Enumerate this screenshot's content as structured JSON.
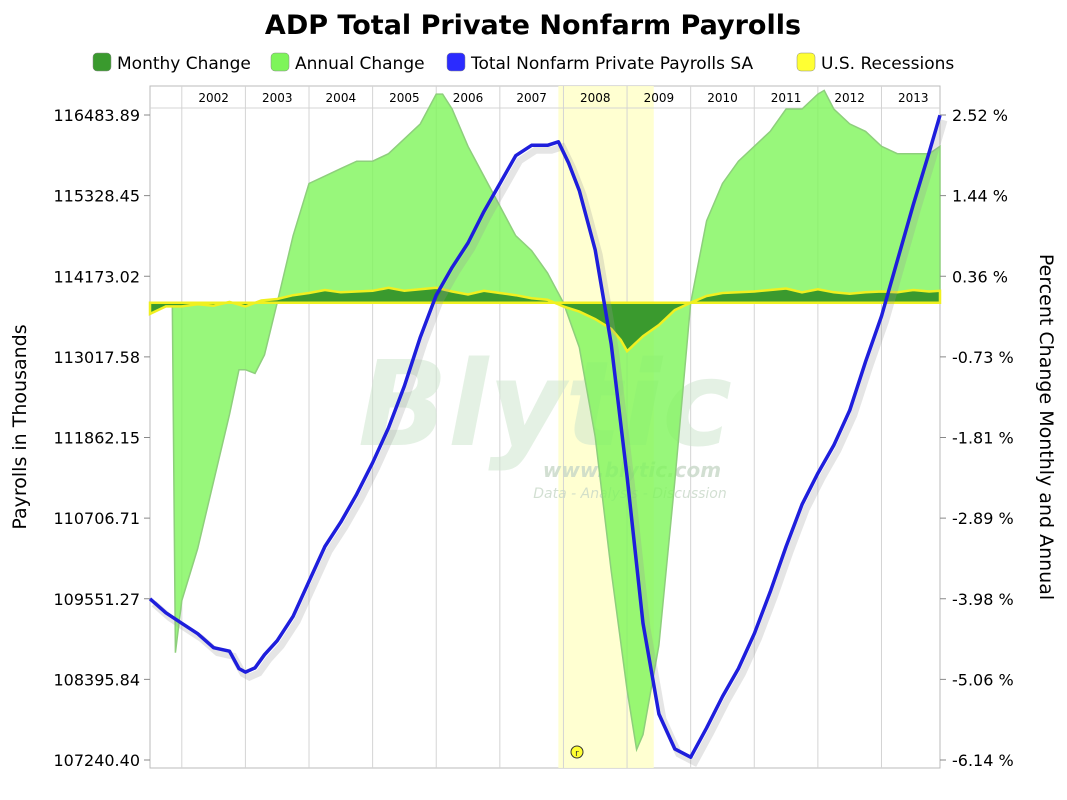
{
  "chart_data": {
    "type": "line",
    "title": "ADP Total Private Nonfarm Payrolls",
    "ylabel_left": "Payrolls in Thousands",
    "ylabel_right": "Percent Change Monthly and Annual",
    "y_left_ticks": [
      "116483.89",
      "115328.45",
      "114173.02",
      "113017.58",
      "111862.15",
      "110706.71",
      "109551.27",
      "108395.84",
      "107240.40"
    ],
    "y_right_ticks": [
      "2.52 %",
      "1.44 %",
      "0.36 %",
      "-0.73 %",
      "-1.81 %",
      "-2.89 %",
      "-3.98 %",
      "-5.06 %",
      "-6.14 %"
    ],
    "ylim_left": [
      107240.4,
      116483.89
    ],
    "ylim_right": [
      -6.14,
      2.52
    ],
    "x_years": [
      "2002",
      "2003",
      "2004",
      "2005",
      "2006",
      "2007",
      "2008",
      "2009",
      "2010",
      "2011",
      "2012",
      "2013"
    ],
    "xlim": [
      2001.5,
      2013.92
    ],
    "grid": true,
    "legend_position": "top",
    "legend": [
      {
        "label": "Monthy Change",
        "color": "#3a9a2e"
      },
      {
        "label": "Annual Change",
        "color": "#7ef55a"
      },
      {
        "label": "Total Nonfarm Private Payrolls SA",
        "color": "#2b2bff"
      },
      {
        "label": "U.S. Recessions",
        "color": "#ffff33"
      }
    ],
    "recession": {
      "start": 2007.92,
      "end": 2009.42,
      "color": "#ffffcc"
    },
    "series": [
      {
        "name": "Total Nonfarm Private Payrolls SA",
        "axis": "left",
        "color": "#1e1edc",
        "x": [
          2001.5,
          2001.75,
          2002.0,
          2002.25,
          2002.5,
          2002.75,
          2002.9,
          2003.0,
          2003.15,
          2003.3,
          2003.5,
          2003.75,
          2004.0,
          2004.25,
          2004.5,
          2004.75,
          2005.0,
          2005.25,
          2005.5,
          2005.75,
          2006.0,
          2006.25,
          2006.5,
          2006.75,
          2007.0,
          2007.25,
          2007.5,
          2007.75,
          2007.92,
          2008.08,
          2008.25,
          2008.5,
          2008.75,
          2009.0,
          2009.25,
          2009.5,
          2009.75,
          2010.0,
          2010.25,
          2010.5,
          2010.75,
          2011.0,
          2011.25,
          2011.5,
          2011.75,
          2012.0,
          2012.25,
          2012.5,
          2012.75,
          2013.0,
          2013.25,
          2013.5,
          2013.75,
          2013.92
        ],
        "values": [
          109550,
          109350,
          109200,
          109050,
          108850,
          108800,
          108550,
          108500,
          108560,
          108750,
          108950,
          109300,
          109800,
          110300,
          110650,
          111050,
          111500,
          112000,
          112600,
          113300,
          113900,
          114300,
          114650,
          115100,
          115500,
          115900,
          116050,
          116050,
          116100,
          115800,
          115400,
          114550,
          113200,
          111300,
          109200,
          107900,
          107400,
          107280,
          107700,
          108150,
          108550,
          109050,
          109650,
          110300,
          110900,
          111350,
          111750,
          112250,
          112950,
          113600,
          114400,
          115200,
          115950,
          116480
        ]
      },
      {
        "name": "Annual Change",
        "axis": "right",
        "color": "#7ef55a",
        "x": [
          2001.5,
          2001.85,
          2001.9,
          2002.0,
          2002.25,
          2002.5,
          2002.75,
          2002.9,
          2003.0,
          2003.15,
          2003.3,
          2003.5,
          2003.75,
          2004.0,
          2004.25,
          2004.5,
          2004.75,
          2005.0,
          2005.25,
          2005.5,
          2005.75,
          2006.0,
          2006.1,
          2006.25,
          2006.5,
          2006.75,
          2007.0,
          2007.25,
          2007.5,
          2007.75,
          2008.0,
          2008.25,
          2008.5,
          2008.75,
          2009.0,
          2009.15,
          2009.25,
          2009.5,
          2009.75,
          2010.0,
          2010.25,
          2010.5,
          2010.75,
          2011.0,
          2011.25,
          2011.5,
          2011.75,
          2012.0,
          2012.1,
          2012.25,
          2012.5,
          2012.75,
          2013.0,
          2013.25,
          2013.5,
          2013.75,
          2013.92
        ],
        "values": [
          0,
          0,
          -4.7,
          -4.0,
          -3.3,
          -2.4,
          -1.5,
          -0.9,
          -0.9,
          -0.95,
          -0.7,
          0.0,
          0.9,
          1.6,
          1.7,
          1.8,
          1.9,
          1.9,
          2.0,
          2.2,
          2.4,
          2.8,
          2.8,
          2.6,
          2.1,
          1.7,
          1.3,
          0.9,
          0.7,
          0.4,
          0.0,
          -0.6,
          -1.8,
          -3.6,
          -5.2,
          -6.0,
          -5.8,
          -4.6,
          -2.4,
          0.0,
          1.1,
          1.6,
          1.9,
          2.1,
          2.3,
          2.6,
          2.6,
          2.8,
          2.85,
          2.6,
          2.4,
          2.3,
          2.1,
          2.0,
          2.0,
          2.0,
          2.1
        ]
      },
      {
        "name": "Monthy Change",
        "axis": "right",
        "color": "#3a9a2e",
        "x": [
          2001.5,
          2001.75,
          2002.0,
          2002.25,
          2002.5,
          2002.75,
          2003.0,
          2003.25,
          2003.5,
          2003.75,
          2004.0,
          2004.25,
          2004.5,
          2004.75,
          2005.0,
          2005.25,
          2005.5,
          2005.75,
          2006.0,
          2006.25,
          2006.5,
          2006.75,
          2007.0,
          2007.25,
          2007.5,
          2007.75,
          2008.0,
          2008.25,
          2008.5,
          2008.75,
          2008.9,
          2009.0,
          2009.25,
          2009.5,
          2009.75,
          2010.0,
          2010.25,
          2010.5,
          2010.75,
          2011.0,
          2011.25,
          2011.5,
          2011.75,
          2012.0,
          2012.25,
          2012.5,
          2012.75,
          2013.0,
          2013.25,
          2013.5,
          2013.75,
          2013.92
        ],
        "values": [
          -0.15,
          -0.05,
          -0.05,
          -0.02,
          -0.04,
          0.01,
          -0.05,
          0.03,
          0.05,
          0.1,
          0.13,
          0.17,
          0.14,
          0.15,
          0.16,
          0.2,
          0.16,
          0.18,
          0.2,
          0.15,
          0.11,
          0.16,
          0.13,
          0.1,
          0.06,
          0.04,
          -0.05,
          -0.12,
          -0.22,
          -0.35,
          -0.5,
          -0.65,
          -0.45,
          -0.3,
          -0.1,
          0.0,
          0.09,
          0.13,
          0.14,
          0.15,
          0.17,
          0.19,
          0.14,
          0.18,
          0.14,
          0.12,
          0.14,
          0.15,
          0.14,
          0.17,
          0.15,
          0.16
        ]
      }
    ]
  }
}
